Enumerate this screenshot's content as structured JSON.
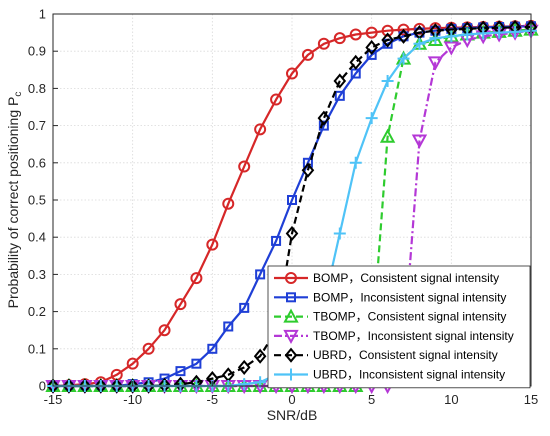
{
  "chart_data": {
    "type": "line",
    "xlabel": "SNR/dB",
    "ylabel": "Probability of correct positioning P",
    "ylabel_subscript": "c",
    "xlim": [
      -15,
      15
    ],
    "ylim": [
      0,
      1
    ],
    "xticks": [
      -15,
      -10,
      -5,
      0,
      5,
      10,
      15
    ],
    "yticks": [
      0,
      0.1,
      0.2,
      0.3,
      0.4,
      0.5,
      0.6,
      0.7,
      0.8,
      0.9,
      1
    ],
    "xtick_labels": [
      "-15",
      "-10",
      "-5",
      "0",
      "5",
      "10",
      "15"
    ],
    "ytick_labels": [
      "0",
      "0.1",
      "0.2",
      "0.3",
      "0.4",
      "0.5",
      "0.6",
      "0.7",
      "0.8",
      "0.9",
      "1"
    ],
    "grid": true,
    "legend_position": "lower-right",
    "x": [
      -15,
      -14,
      -13,
      -12,
      -11,
      -10,
      -9,
      -8,
      -7,
      -6,
      -5,
      -4,
      -3,
      -2,
      -1,
      0,
      1,
      2,
      3,
      4,
      5,
      6,
      7,
      8,
      9,
      10,
      11,
      12,
      13,
      14,
      15
    ],
    "series": [
      {
        "name": "BOMP，Consistent signal intensity",
        "color": "#d62728",
        "marker": "circle",
        "dash": "solid",
        "values": [
          0,
          0.002,
          0.005,
          0.01,
          0.03,
          0.06,
          0.1,
          0.15,
          0.22,
          0.29,
          0.38,
          0.49,
          0.59,
          0.69,
          0.77,
          0.84,
          0.89,
          0.92,
          0.935,
          0.945,
          0.95,
          0.955,
          0.958,
          0.96,
          0.962,
          0.963,
          0.964,
          0.965,
          0.966,
          0.967,
          0.968
        ]
      },
      {
        "name": "BOMP，Inconsistent signal intensity",
        "color": "#1f3fd6",
        "marker": "square",
        "dash": "solid",
        "values": [
          0,
          0,
          0,
          0,
          0,
          0.005,
          0.01,
          0.02,
          0.04,
          0.06,
          0.1,
          0.16,
          0.21,
          0.3,
          0.39,
          0.5,
          0.6,
          0.7,
          0.78,
          0.84,
          0.89,
          0.92,
          0.94,
          0.95,
          0.955,
          0.96,
          0.962,
          0.964,
          0.965,
          0.966,
          0.967
        ]
      },
      {
        "name": "TBOMP，Consistent signal intensity",
        "color": "#2ecc2e",
        "marker": "triangle-up",
        "dash": "dashed",
        "values": [
          0,
          0,
          0,
          0,
          0,
          0,
          0,
          0,
          0,
          0,
          0,
          0,
          0,
          0,
          0,
          0,
          0,
          0,
          0,
          0,
          0.1,
          0.67,
          0.88,
          0.92,
          0.93,
          0.94,
          0.945,
          0.95,
          0.952,
          0.955,
          0.958
        ]
      },
      {
        "name": "TBOMP，Inconsistent signal intensity",
        "color": "#b437d6",
        "marker": "triangle-down",
        "dash": "dashdot",
        "values": [
          0,
          0,
          0,
          0,
          0,
          0,
          0,
          0,
          0,
          0,
          0,
          0,
          0,
          0,
          0,
          0,
          0,
          0,
          0,
          0,
          0,
          0,
          0.1,
          0.66,
          0.87,
          0.91,
          0.93,
          0.94,
          0.945,
          0.95,
          0.955
        ]
      },
      {
        "name": "UBRD，Consistent signal intensity",
        "color": "#000000",
        "marker": "diamond",
        "dash": "dashed",
        "values": [
          0,
          0,
          0,
          0,
          0,
          0,
          0,
          0.002,
          0.005,
          0.01,
          0.02,
          0.03,
          0.05,
          0.08,
          0.15,
          0.41,
          0.58,
          0.72,
          0.82,
          0.87,
          0.91,
          0.93,
          0.94,
          0.95,
          0.955,
          0.958,
          0.96,
          0.962,
          0.963,
          0.964,
          0.965
        ]
      },
      {
        "name": "UBRD，Inconsistent signal intensity",
        "color": "#4fc3f7",
        "marker": "plus",
        "dash": "solid",
        "values": [
          0,
          0,
          0,
          0,
          0,
          0,
          0,
          0,
          0,
          0,
          0,
          0,
          0.005,
          0.01,
          0.03,
          0.07,
          0.12,
          0.22,
          0.41,
          0.6,
          0.72,
          0.82,
          0.88,
          0.92,
          0.935,
          0.94,
          0.945,
          0.948,
          0.95,
          0.952,
          0.955
        ]
      }
    ]
  }
}
